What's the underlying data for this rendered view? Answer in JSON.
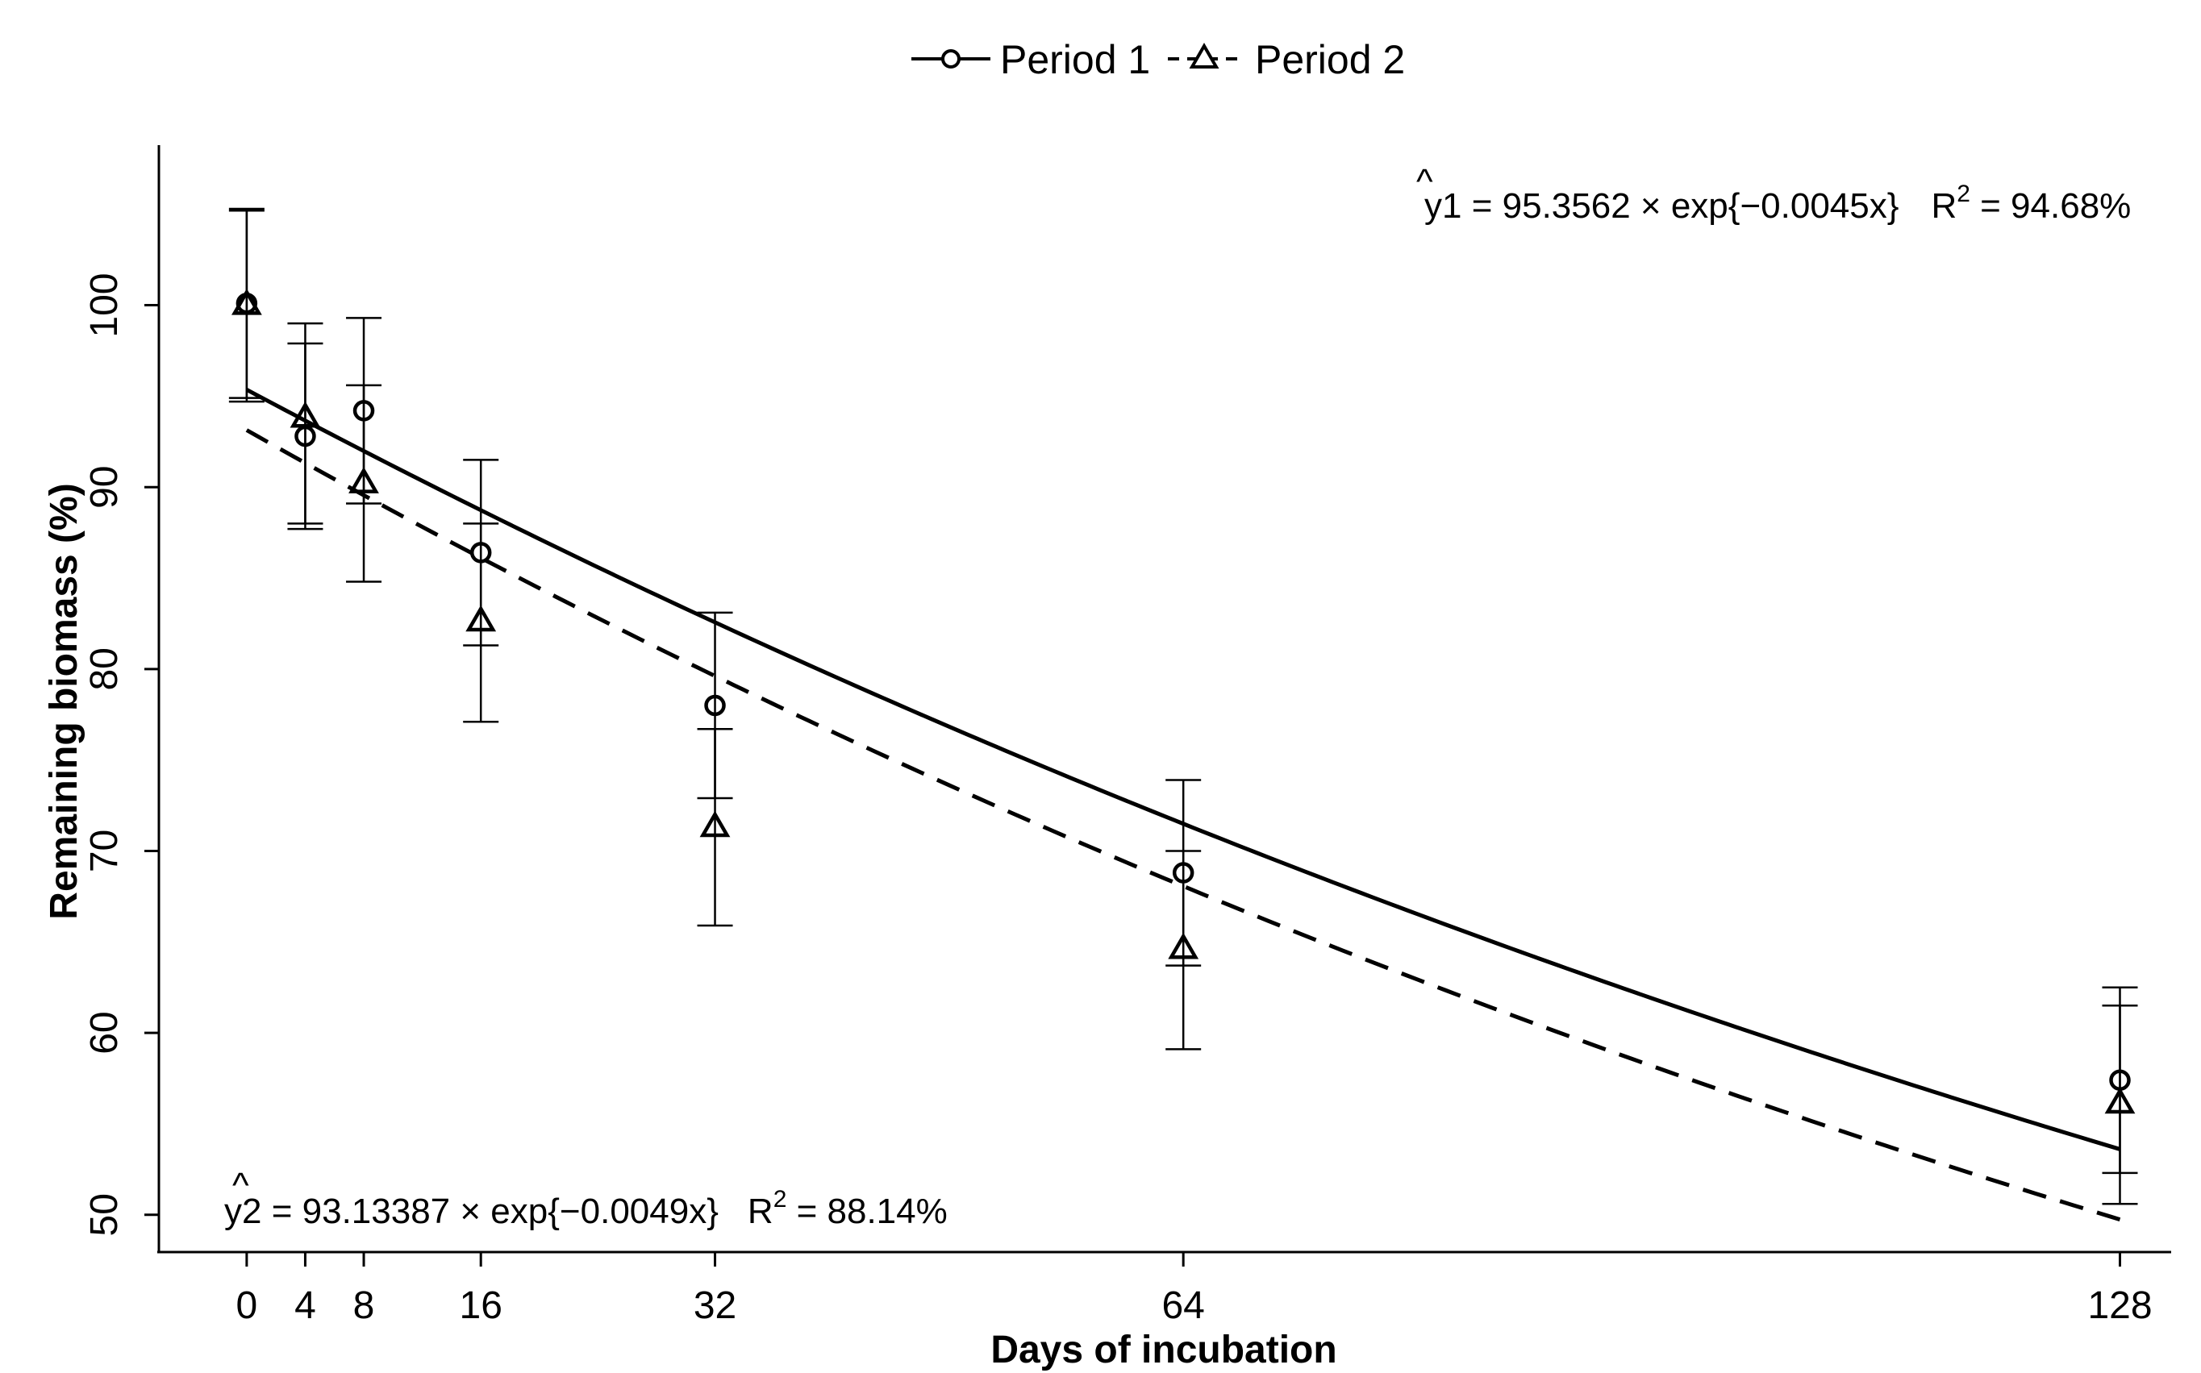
{
  "chart_data": {
    "type": "scatter",
    "title": "",
    "xlabel": "Days of incubation",
    "ylabel": "Remaining biomass (%)",
    "xlim": [
      -6,
      131.5
    ],
    "ylim": [
      47.95,
      108.8
    ],
    "x_ticks": [
      0,
      4,
      8,
      16,
      32,
      64,
      128
    ],
    "y_ticks": [
      50,
      60,
      70,
      80,
      90,
      100
    ],
    "legend_position": "top-center",
    "series": [
      {
        "name": "Period 1",
        "marker": "circle",
        "line_style": "solid",
        "x": [
          0,
          4,
          8,
          16,
          32,
          64,
          128
        ],
        "y": [
          100.1,
          92.8,
          94.2,
          86.4,
          78.0,
          68.8,
          57.4
        ],
        "error_low": [
          94.9,
          87.7,
          89.1,
          81.3,
          72.9,
          63.7,
          52.3
        ],
        "error_high": [
          105.3,
          97.9,
          99.3,
          91.5,
          83.1,
          73.9,
          62.5
        ]
      },
      {
        "name": "Period 2",
        "marker": "triangle",
        "line_style": "dashed",
        "x": [
          0,
          4,
          8,
          16,
          32,
          64,
          128
        ],
        "y": [
          100.0,
          93.8,
          90.2,
          82.6,
          71.3,
          64.6,
          56.1
        ],
        "error_low": [
          94.7,
          88.0,
          84.8,
          77.1,
          65.9,
          59.1,
          50.6
        ],
        "error_high": [
          105.2,
          99.0,
          95.6,
          88.0,
          76.7,
          70.0,
          61.5
        ]
      }
    ],
    "fits": [
      {
        "series": "Period 1",
        "a": 95.3562,
        "b": -0.0045,
        "x_range": [
          0,
          128
        ]
      },
      {
        "series": "Period 2",
        "a": 93.13387,
        "b": -0.0049,
        "x_range": [
          0,
          128
        ]
      }
    ],
    "annotations": {
      "eq1": {
        "hat": "^",
        "lhs": "y1",
        "eq": " = 95.3562 × exp{−0.0045x}",
        "r2_prefix": "R",
        "r2_sup": "2",
        "r2_value": " = 94.68%",
        "position": "top-right"
      },
      "eq2": {
        "hat": "^",
        "lhs": "y2",
        "eq": " = 93.13387 × exp{−0.0049x}",
        "r2_prefix": "R",
        "r2_sup": "2",
        "r2_value": " = 88.14%",
        "position": "bottom-left"
      }
    }
  }
}
